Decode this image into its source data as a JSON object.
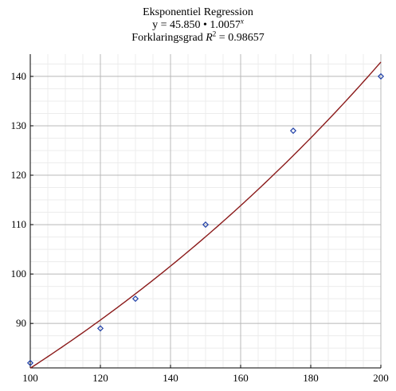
{
  "title": {
    "line1": "Eksponentiel Regression",
    "equation_prefix": "y = 45.850 • 1.0057",
    "equation_exponent": "x",
    "r2_prefix": "Forklaringsgrad ",
    "r2_var": "R",
    "r2_exp": "2",
    "r2_suffix": " = 0.98657"
  },
  "chart_data": {
    "type": "scatter",
    "title": "Eksponentiel Regression",
    "xlabel": "",
    "ylabel": "",
    "xlim": [
      100,
      200
    ],
    "ylim": [
      81,
      144.5
    ],
    "x_ticks": [
      100,
      120,
      140,
      160,
      180,
      200
    ],
    "y_ticks": [
      90,
      100,
      110,
      120,
      130,
      140
    ],
    "grid": true,
    "series": [
      {
        "type": "scatter",
        "marker": "diamond",
        "color": "#1f3fa8",
        "x": [
          100,
          120,
          130,
          150,
          175,
          200
        ],
        "y": [
          82,
          89,
          95,
          110,
          129,
          140
        ]
      },
      {
        "type": "line",
        "color": "#8b1a1a",
        "model": {
          "a": 45.85,
          "b": 1.0057
        },
        "x_range": [
          100,
          200
        ]
      }
    ]
  }
}
